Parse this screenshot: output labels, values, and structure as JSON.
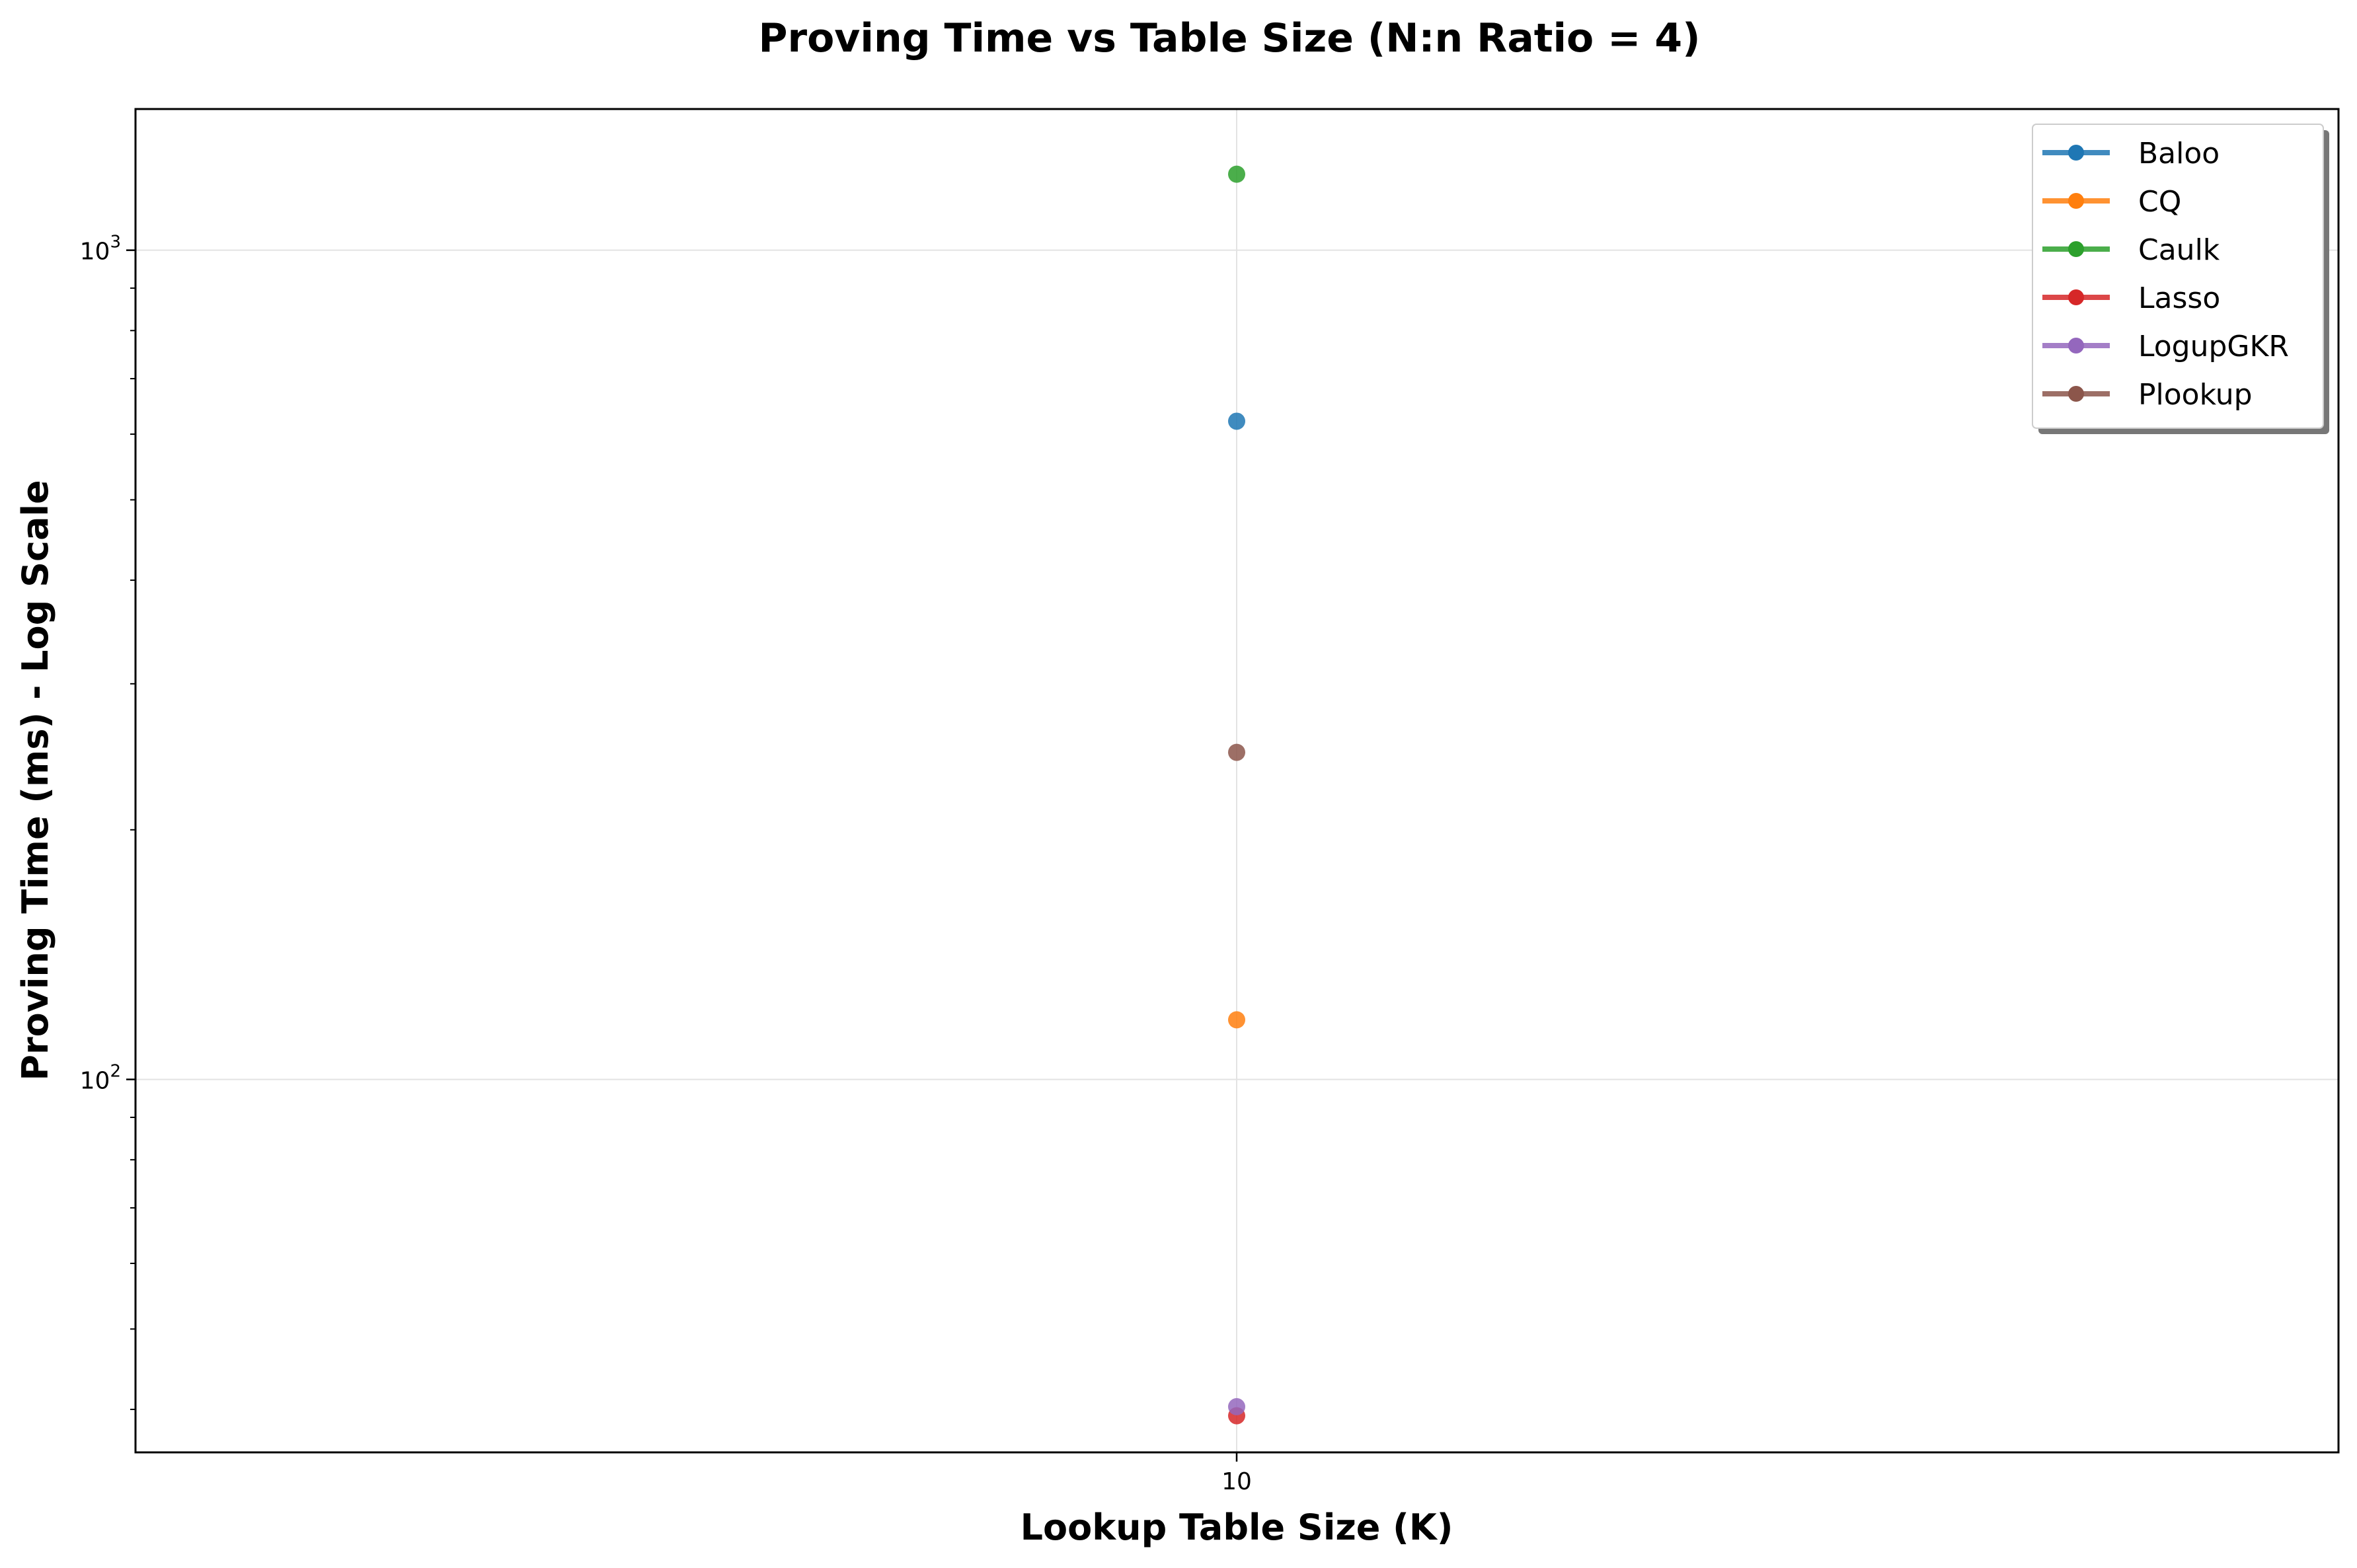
{
  "chart_data": {
    "type": "line",
    "title": "Proving Time vs Table Size (N:n Ratio = 4)",
    "xlabel": "Lookup Table Size (K)",
    "ylabel": "Proving Time (ms) - Log Scale",
    "x_ticks": [
      "10"
    ],
    "y_scale": "log",
    "y_ticks": [
      {
        "value": 100,
        "label": "10",
        "exp": "2"
      },
      {
        "value": 1000,
        "label": "10",
        "exp": "3"
      }
    ],
    "ylim": [
      35.5,
      1480
    ],
    "grid": true,
    "legend_position": "top-right",
    "series": [
      {
        "name": "Baloo",
        "color": "#1f77b4",
        "points": [
          {
            "x": 10,
            "y": 622
          }
        ]
      },
      {
        "name": "CQ",
        "color": "#ff7f0e",
        "points": [
          {
            "x": 10,
            "y": 118
          }
        ]
      },
      {
        "name": "Caulk",
        "color": "#2ca02c",
        "points": [
          {
            "x": 10,
            "y": 1235
          }
        ]
      },
      {
        "name": "Lasso",
        "color": "#d62728",
        "points": [
          {
            "x": 10,
            "y": 39.3
          }
        ]
      },
      {
        "name": "LogupGKR",
        "color": "#9467bd",
        "points": [
          {
            "x": 10,
            "y": 40.3
          }
        ]
      },
      {
        "name": "Plookup",
        "color": "#8c564b",
        "points": [
          {
            "x": 10,
            "y": 248
          }
        ]
      }
    ]
  }
}
